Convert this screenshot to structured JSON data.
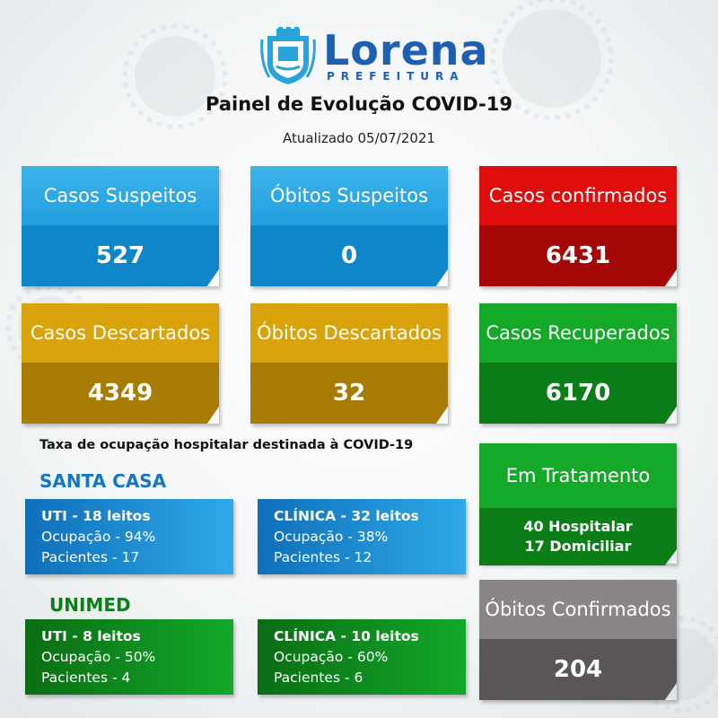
{
  "header": {
    "logo_name": "Lorena",
    "logo_sub": "PREFEITURA",
    "title": "Painel de Evolução COVID-19",
    "updated": "Atualizado 05/07/2021"
  },
  "colors": {
    "blue": "#1f9fde",
    "red": "#e00d0d",
    "gold": "#d9a40b",
    "green": "#15a92a",
    "gray": "#8b8686",
    "brand": "#1f5fb3"
  },
  "cards": {
    "casos_suspeitos": {
      "label": "Casos Suspeitos",
      "value": "527"
    },
    "obitos_suspeitos": {
      "label": "Óbitos Suspeitos",
      "value": "0"
    },
    "casos_confirmados": {
      "label": "Casos confirmados",
      "value": "6431"
    },
    "casos_descartados": {
      "label": "Casos Descartados",
      "value": "4349"
    },
    "obitos_descartados": {
      "label": "Óbitos Descartados",
      "value": "32"
    },
    "casos_recuperados": {
      "label": "Casos Recuperados",
      "value": "6170"
    },
    "em_tratamento": {
      "label": "Em Tratamento",
      "line1": "40 Hospitalar",
      "line2": "17 Domiciliar"
    },
    "obitos_confirmados": {
      "label": "Óbitos Confirmados",
      "value": "204"
    }
  },
  "occupancy": {
    "title": "Taxa de ocupação hospitalar destinada à COVID-19",
    "santa_casa": {
      "name": "SANTA CASA",
      "uti": {
        "head": "UTI - 18 leitos",
        "ocupacao": "Ocupação - 94%",
        "pacientes": "Pacientes - 17"
      },
      "clinica": {
        "head": "CLÍNICA - 32 leitos",
        "ocupacao": "Ocupação - 38%",
        "pacientes": "Pacientes - 12"
      }
    },
    "unimed": {
      "name": "UNIMED",
      "uti": {
        "head": "UTI - 8 leitos",
        "ocupacao": "Ocupação - 50%",
        "pacientes": "Pacientes - 4"
      },
      "clinica": {
        "head": "CLÍNICA - 10 leitos",
        "ocupacao": "Ocupação - 60%",
        "pacientes": "Pacientes - 6"
      }
    }
  }
}
